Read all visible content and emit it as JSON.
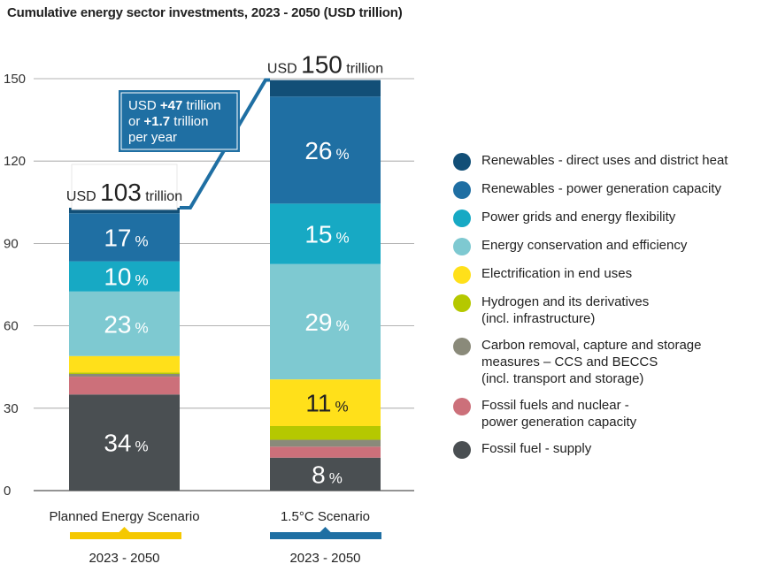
{
  "title": "Cumulative energy sector investments, 2023 - 2050 (USD trillion)",
  "chart_data": {
    "type": "bar",
    "stacked": true,
    "ylim": [
      0,
      150
    ],
    "yticks": [
      0,
      30,
      60,
      90,
      120,
      150
    ],
    "grid": true,
    "legend_position": "right",
    "categories": [
      "Planned Energy Scenario",
      "1.5°C Scenario"
    ],
    "category_periods": [
      "2023 - 2050",
      "2023 - 2050"
    ],
    "category_colors": [
      "#f5c800",
      "#1f6fa3"
    ],
    "totals": [
      {
        "prefix": "USD",
        "value": "103",
        "suffix": "trillion"
      },
      {
        "prefix": "USD",
        "value": "150",
        "suffix": "trillion"
      }
    ],
    "callout": {
      "line1_pre": "USD ",
      "line1_bold": "+47",
      "line1_post": " trillion",
      "line2_pre": "or ",
      "line2_bold": "+1.7",
      "line2_post": " trillion",
      "line3": "per year"
    },
    "series": [
      {
        "name": "Fossil fuel - supply",
        "color": "#4a4f52",
        "values": [
          35,
          12
        ],
        "labels": [
          "34",
          "8"
        ]
      },
      {
        "name": "Fossil fuels and nuclear -\npower generation capacity",
        "color": "#cc707a",
        "values": [
          6.5,
          4
        ],
        "labels": [
          "",
          ""
        ]
      },
      {
        "name": "Carbon removal, capture and storage\nmeasures – CCS and BECCS\n(incl. transport and storage)",
        "color": "#8a8a7a",
        "values": [
          1,
          2.5
        ],
        "labels": [
          "",
          ""
        ]
      },
      {
        "name": "Hydrogen and its derivatives\n(incl. infrastructure)",
        "color": "#b5c800",
        "values": [
          0.5,
          5
        ],
        "labels": [
          "",
          ""
        ]
      },
      {
        "name": "Electrification in end uses",
        "color": "#ffe01a",
        "values": [
          6,
          17
        ],
        "labels": [
          "",
          "11"
        ]
      },
      {
        "name": "Energy conservation and efficiency",
        "color": "#7ec9d1",
        "values": [
          23.5,
          42
        ],
        "labels": [
          "23",
          "29"
        ]
      },
      {
        "name": "Power grids and energy flexibility",
        "color": "#17a9c4",
        "values": [
          11,
          22
        ],
        "labels": [
          "10",
          "15"
        ]
      },
      {
        "name": "Renewables - power generation capacity",
        "color": "#1f6fa3",
        "values": [
          17.5,
          39
        ],
        "labels": [
          "17",
          "26"
        ]
      },
      {
        "name": "Renewables - direct uses and district heat",
        "color": "#124f77",
        "values": [
          2,
          6
        ],
        "labels": [
          "",
          ""
        ]
      }
    ],
    "percent_sign": "%"
  }
}
